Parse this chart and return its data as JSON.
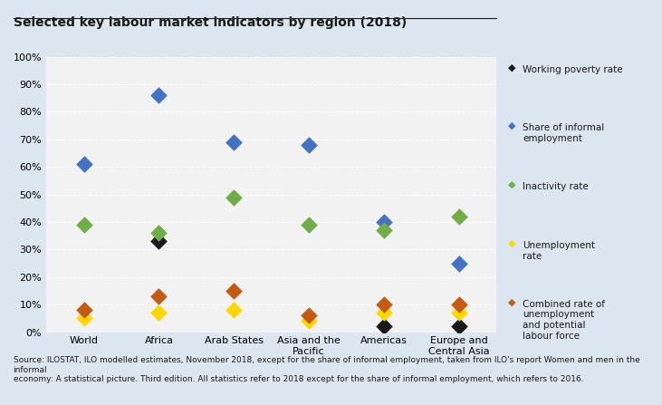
{
  "title": "Selected key labour market indicators by region (2018)",
  "categories": [
    "World",
    "Africa",
    "Arab States",
    "Asia and the\nPacific",
    "Americas",
    "Europe and\nCentral Asia"
  ],
  "indicators": {
    "Working poverty rate": {
      "values": [
        null,
        33,
        null,
        null,
        2,
        2
      ],
      "color": "#1a1a1a",
      "marker": "D"
    },
    "Share of informal employment": {
      "values": [
        61,
        86,
        69,
        68,
        40,
        25
      ],
      "color": "#4472c4",
      "marker": "D"
    },
    "Inactivity rate": {
      "values": [
        39,
        36,
        49,
        39,
        37,
        42
      ],
      "color": "#70ad47",
      "marker": "D"
    },
    "Unemployment rate": {
      "values": [
        5,
        7,
        8,
        4,
        7,
        7
      ],
      "color": "#ffd700",
      "marker": "D"
    },
    "Combined rate of unemployment and potential labour force": {
      "values": [
        8,
        13,
        15,
        6,
        10,
        10
      ],
      "color": "#c55a11",
      "marker": "D"
    }
  },
  "footnote": "Source: ILOSTAT, ILO modelled estimates, November 2018, except for the share of informal employment, taken from ILO's report Women and men in the informal\neconomy: A statistical picture. Third edition. All statistics refer to 2018 except for the share of informal employment, which refers to 2016.",
  "ylim": [
    0,
    100
  ],
  "yticks": [
    0,
    10,
    20,
    30,
    40,
    50,
    60,
    70,
    80,
    90,
    100
  ],
  "background_color": "#dce6f1",
  "plot_bg_color": "#f2f2f2",
  "legend_labels": [
    "Working poverty rate",
    "Share of informal\nemployment",
    "Inactivity rate",
    "Unemployment\nrate",
    "Combined rate of\nunemployment\nand potential\nlabour force"
  ],
  "legend_colors": [
    "#1a1a1a",
    "#4472c4",
    "#70ad47",
    "#ffd700",
    "#c55a11"
  ]
}
